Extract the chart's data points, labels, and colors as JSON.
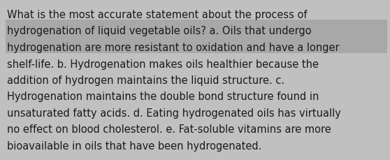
{
  "background_color": "#c0c0c0",
  "highlight_color": "#a8a8a8",
  "text_color": "#1a1a1a",
  "font_size": 10.5,
  "text": "What is the most accurate statement about the process of hydrogenation of liquid vegetable oils? a. Oils that undergo hydrogenation are more resistant to oxidation and have a longer shelf-life. b. Hydrogenation makes oils healthier because the addition of hydrogen maintains the liquid structure. c. Hydrogenation maintains the double bond structure found in unsaturated fatty acids. d. Eating hydrogenated oils has virtually no effect on blood cholesterol. e. Fat-soluble vitamins are more bioavailable in oils that have been hydrogenated.",
  "lines": [
    "What is the most accurate statement about the process of",
    "hydrogenation of liquid vegetable oils? a. Oils that undergo",
    "hydrogenation are more resistant to oxidation and have a longer",
    "shelf-life. b. Hydrogenation makes oils healthier because the",
    "addition of hydrogen maintains the liquid structure. c.",
    "Hydrogenation maintains the double bond structure found in",
    "unsaturated fatty acids. d. Eating hydrogenated oils has virtually",
    "no effect on blood cholesterol. e. Fat-soluble vitamins are more",
    "bioavailable in oils that have been hydrogenated."
  ],
  "highlight_lines": [
    6,
    7
  ],
  "figsize": [
    5.58,
    2.3
  ],
  "dpi": 100
}
